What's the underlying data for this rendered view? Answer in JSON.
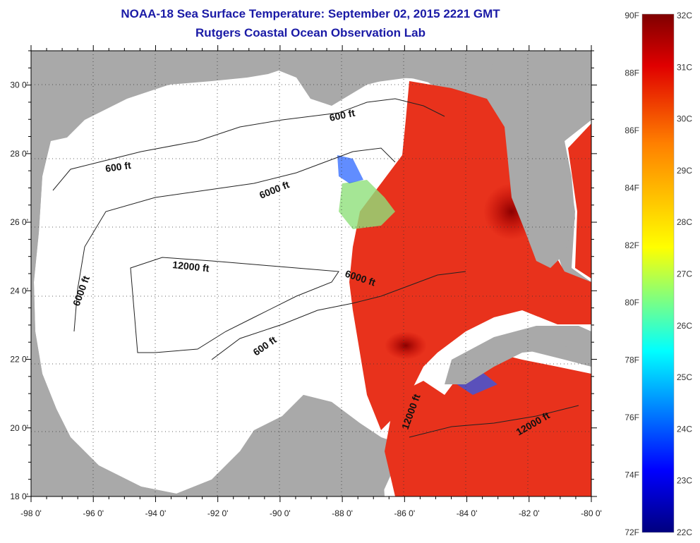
{
  "header": {
    "title": "NOAA-18 Sea Surface Temperature:  September 02, 2015 2221 GMT",
    "subtitle": "Rutgers Coastal Ocean Observation Lab"
  },
  "axes": {
    "x_ticks": [
      "-98 0'",
      "-96 0'",
      "-94 0'",
      "-92 0'",
      "-90 0'",
      "-88 0'",
      "-86 0'",
      "-84 0'",
      "-82 0'",
      "-80 0'"
    ],
    "y_ticks": [
      "30 0'",
      "28 0'",
      "26 0'",
      "24 0'",
      "22 0'",
      "20 0'",
      "18 0'"
    ],
    "lon_range": [
      -98,
      -80
    ],
    "lat_range": [
      18,
      31
    ]
  },
  "contour_labels": [
    "600 ft",
    "600 ft",
    "6000 ft",
    "6000 ft",
    "12000 ft",
    "6000 ft",
    "600 ft",
    "12000 ft",
    "12000 ft"
  ],
  "colorbar": {
    "fahrenheit": [
      "90F",
      "88F",
      "86F",
      "84F",
      "82F",
      "80F",
      "78F",
      "76F",
      "74F",
      "72F"
    ],
    "celsius": [
      "32C",
      "31C",
      "30C",
      "29C",
      "28C",
      "27C",
      "26C",
      "25C",
      "24C",
      "23C",
      "22C"
    ],
    "range_c": [
      22,
      32
    ],
    "colors": [
      "#00007f",
      "#0000ff",
      "#0080ff",
      "#00ffff",
      "#80ff80",
      "#ffff00",
      "#ff8000",
      "#ff0000",
      "#7f0000"
    ]
  },
  "colors": {
    "land": "#a9a9a9",
    "no_data": "#ffffff",
    "warm_water": "#e8321c",
    "title": "#1a1aa6"
  }
}
